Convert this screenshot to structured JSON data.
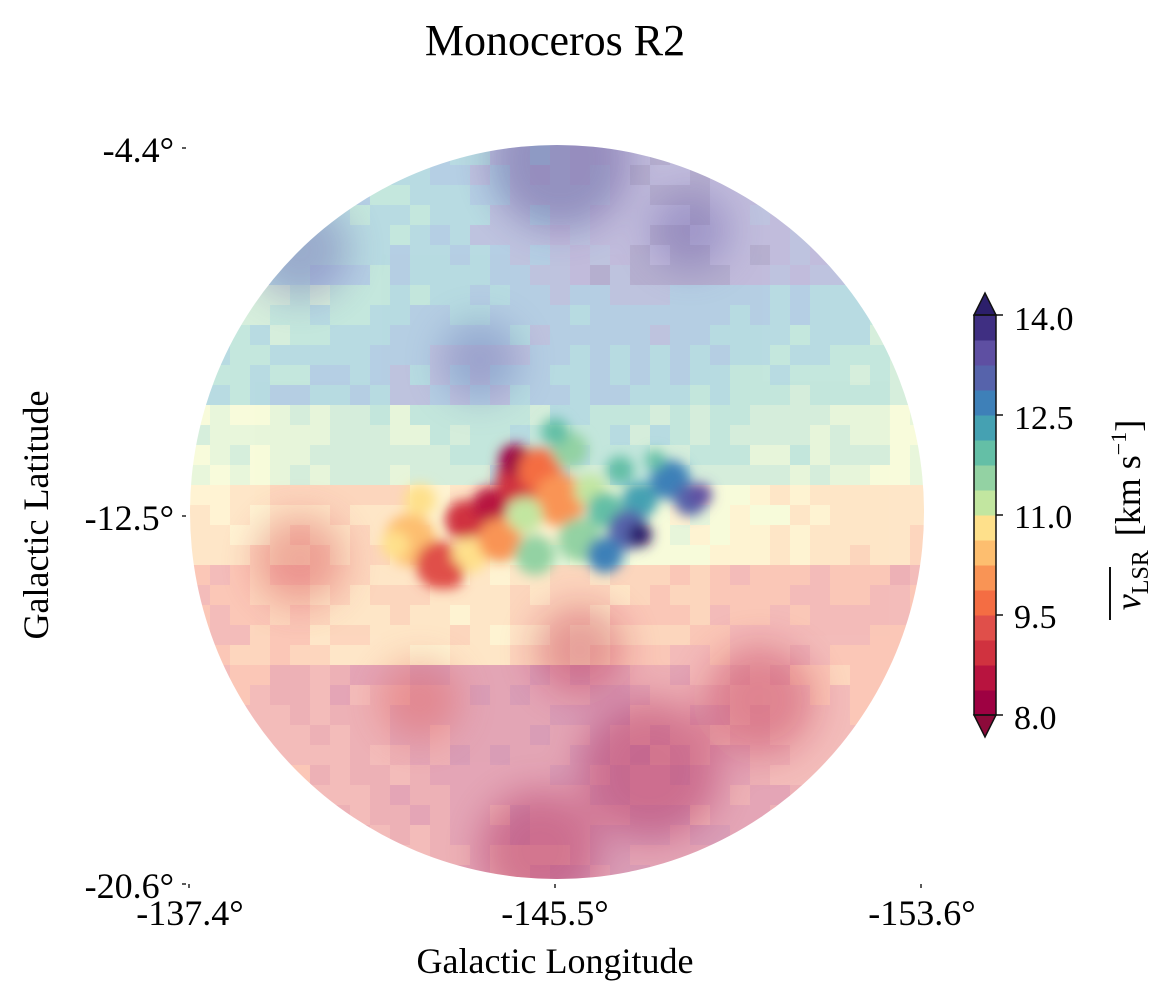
{
  "chart_data": {
    "type": "heatmap",
    "title": "Monoceros R2",
    "xlabel": "Galactic Longitude",
    "ylabel": "Galactic Latitude",
    "x_ticks": [
      "-137.4°",
      "-145.5°",
      "-153.6°"
    ],
    "y_ticks": [
      "-4.4°",
      "-12.5°",
      "-20.6°"
    ],
    "x_tick_values": [
      -137.4,
      -145.5,
      -153.6
    ],
    "y_tick_values": [
      -4.4,
      -12.5,
      -20.6
    ],
    "xlim": [
      -137.4,
      -153.6
    ],
    "ylim": [
      -20.6,
      -4.4
    ],
    "field_shape": "circle",
    "field_center": {
      "l": -145.5,
      "b": -12.5
    },
    "field_radius_deg": 8.1,
    "grid": false,
    "colormap": "Spectral",
    "colorbar": {
      "label": "v_LSR [km s^-1]",
      "label_main": "v",
      "label_sub": "LSR",
      "label_units": "[km s",
      "label_exp": "−1",
      "label_close": "]",
      "ticks": [
        "8.0",
        "9.5",
        "11.0",
        "12.5",
        "14.0"
      ],
      "tick_values": [
        8.0,
        9.5,
        11.0,
        12.5,
        14.0
      ],
      "min": 8.0,
      "max": 14.0,
      "levels": [
        8.0,
        8.375,
        8.75,
        9.125,
        9.5,
        9.875,
        10.25,
        10.625,
        11.0,
        11.375,
        11.75,
        12.125,
        12.5,
        12.875,
        13.25,
        13.625,
        14.0
      ],
      "extend": "both",
      "location": "right"
    },
    "background_pattern": "faded; north (top) ~11.5-13.5 km/s, south ~8.5-10.5 km/s",
    "cloud_region": {
      "description": "opaque Mon R2 cloud near field center",
      "values_range": [
        8.0,
        14.0
      ],
      "west_side": "red/orange ~8-10 km/s",
      "east_side": "blue ~12.5-14 km/s"
    }
  },
  "colors": {
    "band_colors": [
      "#9e0142",
      "#b8143f",
      "#d0323f",
      "#e04f4a",
      "#f46d43",
      "#f99455",
      "#fdbe6f",
      "#fee08b",
      "#ecf5a0",
      "#c2e6a0",
      "#93d2a3",
      "#64bfa6",
      "#45a1b2",
      "#3e80b8",
      "#5663ab",
      "#5e4fa2",
      "#3f2f82"
    ],
    "over": "#2c1f6b",
    "under": "#8c0a3a"
  }
}
